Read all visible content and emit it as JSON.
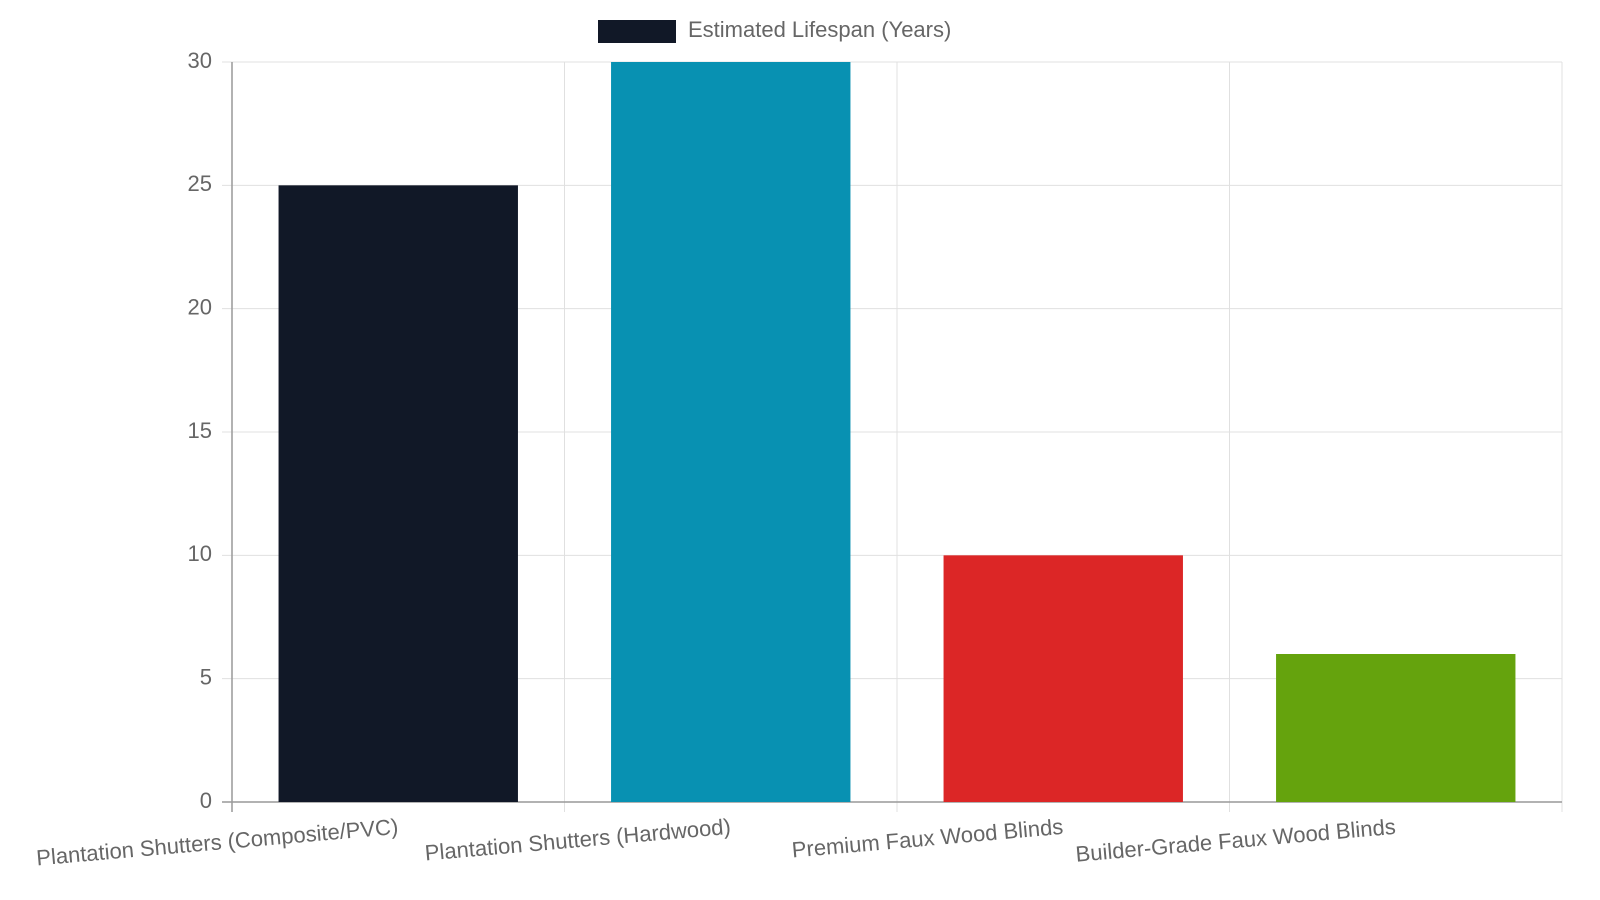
{
  "chart_data": {
    "type": "bar",
    "categories": [
      "Plantation Shutters (Composite/PVC)",
      "Plantation Shutters (Hardwood)",
      "Premium Faux Wood Blinds",
      "Builder-Grade Faux Wood Blinds"
    ],
    "series": [
      {
        "name": "Estimated Lifespan (Years)",
        "colors": [
          "#111827",
          "#0891b2",
          "#dc2626",
          "#65a30d"
        ],
        "values": [
          25,
          30,
          10,
          6
        ]
      }
    ],
    "ylim": [
      0,
      30
    ],
    "yticks": [
      0,
      5,
      10,
      15,
      20,
      25,
      30
    ],
    "grid": true,
    "legend": "top"
  }
}
